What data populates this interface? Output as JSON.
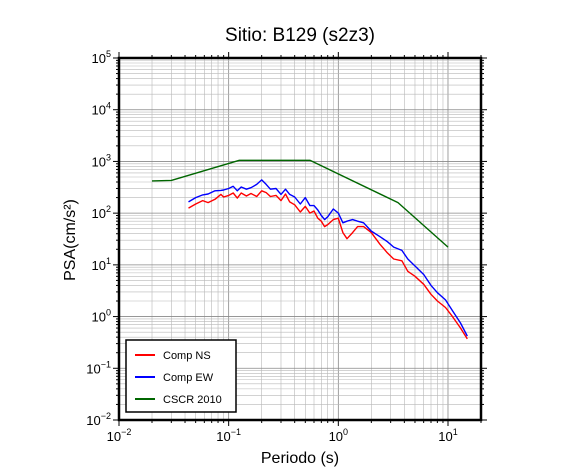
{
  "chart_data": {
    "type": "line",
    "title": "Sitio: B129 (s2z3)",
    "xlabel": "Periodo (s)",
    "ylabel": "PSA(cm/s²)",
    "x_scale": "log",
    "y_scale": "log",
    "xlim": [
      0.01,
      20
    ],
    "ylim": [
      0.01,
      100000
    ],
    "grid": true,
    "legend_position": "bottom-left",
    "x_ticks": [
      {
        "base": "10",
        "exp": "−2"
      },
      {
        "base": "10",
        "exp": "−1"
      },
      {
        "base": "10",
        "exp": "0"
      },
      {
        "base": "10",
        "exp": "1"
      }
    ],
    "y_ticks": [
      {
        "base": "10",
        "exp": "−2"
      },
      {
        "base": "10",
        "exp": "−1"
      },
      {
        "base": "10",
        "exp": "0"
      },
      {
        "base": "10",
        "exp": "1"
      },
      {
        "base": "10",
        "exp": "2"
      },
      {
        "base": "10",
        "exp": "3"
      },
      {
        "base": "10",
        "exp": "4"
      },
      {
        "base": "10",
        "exp": "5"
      }
    ],
    "series": [
      {
        "name": "Comp NS",
        "color": "#ff0000",
        "points": [
          [
            0.043,
            125
          ],
          [
            0.05,
            150
          ],
          [
            0.058,
            175
          ],
          [
            0.065,
            160
          ],
          [
            0.075,
            185
          ],
          [
            0.085,
            230
          ],
          [
            0.09,
            205
          ],
          [
            0.1,
            220
          ],
          [
            0.11,
            245
          ],
          [
            0.12,
            195
          ],
          [
            0.13,
            245
          ],
          [
            0.145,
            215
          ],
          [
            0.16,
            240
          ],
          [
            0.18,
            210
          ],
          [
            0.2,
            270
          ],
          [
            0.22,
            250
          ],
          [
            0.24,
            210
          ],
          [
            0.27,
            220
          ],
          [
            0.3,
            175
          ],
          [
            0.33,
            235
          ],
          [
            0.36,
            165
          ],
          [
            0.4,
            145
          ],
          [
            0.45,
            105
          ],
          [
            0.5,
            135
          ],
          [
            0.55,
            100
          ],
          [
            0.6,
            110
          ],
          [
            0.65,
            80
          ],
          [
            0.7,
            70
          ],
          [
            0.75,
            55
          ],
          [
            0.8,
            60
          ],
          [
            0.9,
            75
          ],
          [
            1.0,
            80
          ],
          [
            1.1,
            42
          ],
          [
            1.2,
            32
          ],
          [
            1.35,
            42
          ],
          [
            1.5,
            55
          ],
          [
            1.7,
            55
          ],
          [
            2.0,
            42
          ],
          [
            2.4,
            25
          ],
          [
            2.8,
            17
          ],
          [
            3.2,
            13
          ],
          [
            3.8,
            12
          ],
          [
            4.3,
            7.5
          ],
          [
            5.0,
            6.0
          ],
          [
            6.0,
            4.2
          ],
          [
            7.0,
            2.7
          ],
          [
            8.0,
            2.0
          ],
          [
            9.5,
            1.5
          ],
          [
            11.0,
            1.0
          ],
          [
            13.0,
            0.6
          ],
          [
            15.0,
            0.37
          ]
        ]
      },
      {
        "name": "Comp EW",
        "color": "#0000ff",
        "points": [
          [
            0.043,
            165
          ],
          [
            0.05,
            200
          ],
          [
            0.058,
            225
          ],
          [
            0.065,
            235
          ],
          [
            0.075,
            270
          ],
          [
            0.085,
            275
          ],
          [
            0.09,
            280
          ],
          [
            0.1,
            300
          ],
          [
            0.11,
            330
          ],
          [
            0.12,
            270
          ],
          [
            0.13,
            320
          ],
          [
            0.145,
            290
          ],
          [
            0.16,
            310
          ],
          [
            0.18,
            360
          ],
          [
            0.2,
            440
          ],
          [
            0.22,
            360
          ],
          [
            0.24,
            290
          ],
          [
            0.27,
            300
          ],
          [
            0.3,
            230
          ],
          [
            0.33,
            290
          ],
          [
            0.36,
            230
          ],
          [
            0.4,
            205
          ],
          [
            0.45,
            150
          ],
          [
            0.5,
            200
          ],
          [
            0.55,
            140
          ],
          [
            0.6,
            140
          ],
          [
            0.65,
            115
          ],
          [
            0.7,
            90
          ],
          [
            0.75,
            75
          ],
          [
            0.8,
            85
          ],
          [
            0.9,
            120
          ],
          [
            1.0,
            100
          ],
          [
            1.1,
            65
          ],
          [
            1.2,
            70
          ],
          [
            1.35,
            75
          ],
          [
            1.5,
            70
          ],
          [
            1.7,
            65
          ],
          [
            2.0,
            45
          ],
          [
            2.4,
            35
          ],
          [
            2.8,
            28
          ],
          [
            3.2,
            22
          ],
          [
            3.8,
            19
          ],
          [
            4.3,
            13
          ],
          [
            5.0,
            9.5
          ],
          [
            6.0,
            6.5
          ],
          [
            7.0,
            4.0
          ],
          [
            8.0,
            2.9
          ],
          [
            9.5,
            2.1
          ],
          [
            11.0,
            1.3
          ],
          [
            13.0,
            0.75
          ],
          [
            15.0,
            0.42
          ]
        ]
      },
      {
        "name": "CSCR 2010",
        "color": "#006600",
        "points": [
          [
            0.02,
            420
          ],
          [
            0.03,
            430
          ],
          [
            0.125,
            1050
          ],
          [
            0.55,
            1050
          ],
          [
            3.5,
            160
          ],
          [
            10.0,
            22
          ]
        ]
      }
    ]
  }
}
